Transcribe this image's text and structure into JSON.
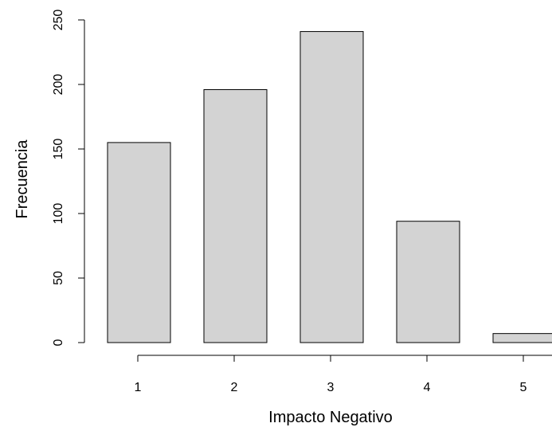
{
  "chart_data": {
    "type": "bar",
    "categories": [
      "1",
      "2",
      "3",
      "4",
      "5"
    ],
    "values": [
      155,
      196,
      241,
      94,
      7
    ],
    "xlabel": "Impacto Negativo",
    "ylabel": "Frecuencia",
    "ylim": [
      0,
      250
    ],
    "yticks": [
      0,
      50,
      100,
      150,
      200,
      250
    ],
    "xticks": [
      "1",
      "2",
      "3",
      "4",
      "5"
    ],
    "grid": false,
    "legend": "none"
  },
  "colors": {
    "bar_fill": "#d3d3d3",
    "bar_stroke": "#000000",
    "axis": "#000000",
    "background": "#ffffff"
  }
}
